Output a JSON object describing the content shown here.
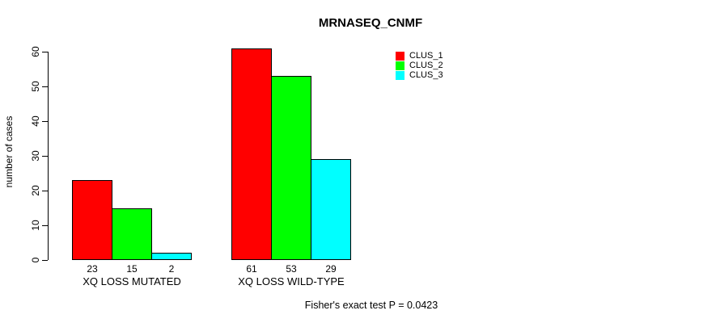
{
  "chart_data": {
    "type": "bar",
    "title": "MRNASEQ_CNMF",
    "xlabel": "",
    "ylabel": "number of cases",
    "ylim": [
      0,
      60
    ],
    "yticks": [
      0,
      10,
      20,
      30,
      40,
      50,
      60
    ],
    "grid": false,
    "legend_position": "top-right",
    "bar_value_labels": true,
    "categories": [
      "XQ LOSS MUTATED",
      "XQ LOSS WILD-TYPE"
    ],
    "series": [
      {
        "name": "CLUS_1",
        "color": "#FF0000",
        "values": [
          23,
          61
        ]
      },
      {
        "name": "CLUS_2",
        "color": "#00FF00",
        "values": [
          15,
          53
        ]
      },
      {
        "name": "CLUS_3",
        "color": "#00FFFF",
        "values": [
          2,
          29
        ]
      }
    ],
    "annotation": "Fisher's exact test P = 0.0423"
  },
  "colors": {
    "background": "#FFFFFF",
    "axis": "#000000",
    "text": "#000000"
  }
}
